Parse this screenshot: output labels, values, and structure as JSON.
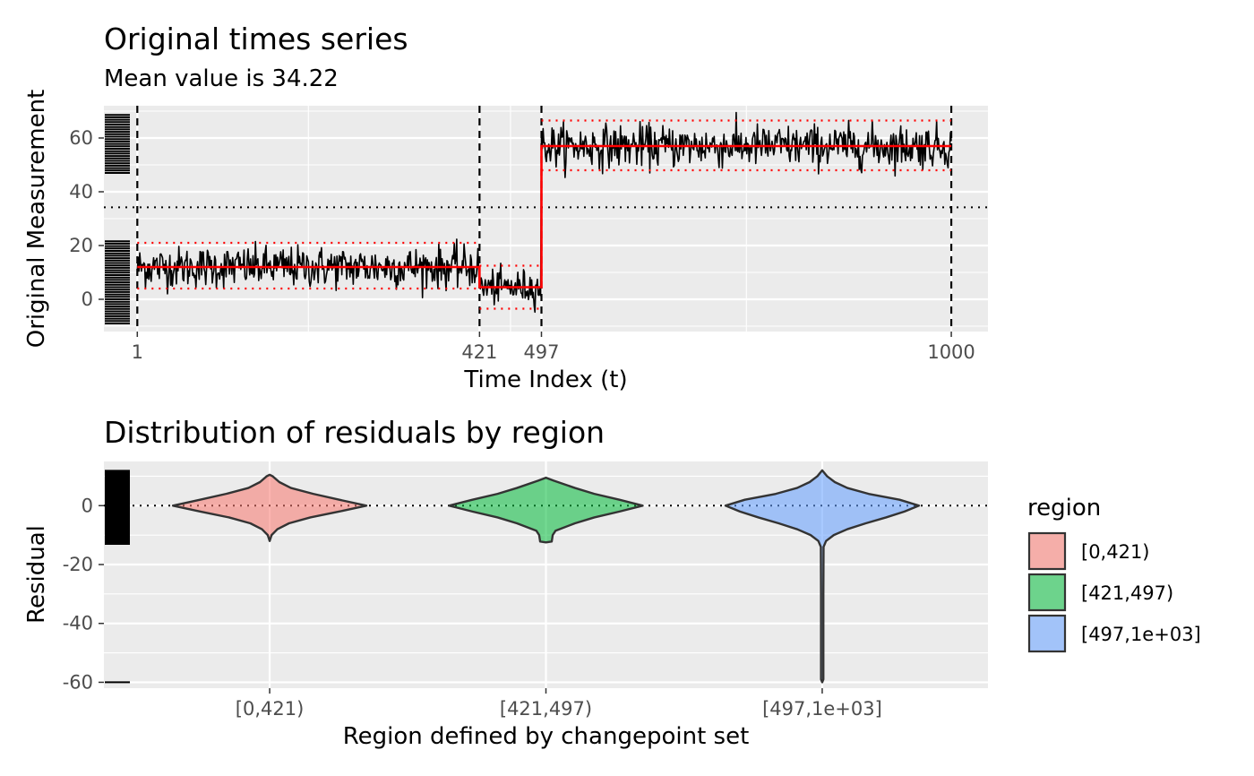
{
  "chart_data": [
    {
      "type": "line",
      "title": "Original times series",
      "subtitle": "Mean value is 34.22",
      "xlabel": "Time Index (t)",
      "ylabel": "Original Measurement",
      "xlim": [
        -40,
        1045
      ],
      "ylim": [
        -12,
        72
      ],
      "x_ticks": [
        1,
        421,
        497,
        1000
      ],
      "y_ticks": [
        0,
        20,
        40,
        60
      ],
      "grid": true,
      "overall_mean": 34.22,
      "changepoints": [
        1,
        421,
        497,
        1000
      ],
      "segments": [
        {
          "start": 1,
          "end": 421,
          "mean": 12,
          "lower": 4,
          "upper": 21,
          "noise_sd": 3.8
        },
        {
          "start": 421,
          "end": 497,
          "mean": 4.5,
          "lower": -3.5,
          "upper": 12.5,
          "noise_sd": 3.2
        },
        {
          "start": 497,
          "end": 1000,
          "mean": 57,
          "lower": 48,
          "upper": 66.5,
          "noise_sd": 3.9
        }
      ],
      "rug_min": -9,
      "rug_low_max": 22,
      "rug_high_min": 47,
      "rug_high_max": 69
    },
    {
      "type": "violin",
      "title": "Distribution of residuals by region",
      "xlabel": "Region defined by changepoint set",
      "ylabel": "Residual",
      "categories": [
        "[0,421)",
        "[421,497)",
        "[497,1e+03]"
      ],
      "ylim": [
        -62,
        15
      ],
      "y_ticks": [
        0,
        -20,
        -40,
        -60
      ],
      "grid": true,
      "reference_line": 0,
      "legend": {
        "title": "region",
        "position": "right",
        "items": [
          {
            "label": "[0,421)",
            "color": "#F8766D"
          },
          {
            "label": "[421,497)",
            "color": "#00BA38"
          },
          {
            "label": "[497,1e+03]",
            "color": "#619CFF"
          }
        ]
      },
      "series": [
        {
          "name": "[0,421)",
          "color": "#F8766D",
          "max": 10.5,
          "min": -12,
          "profile": [
            [
              -12,
              0.0
            ],
            [
              -10,
              0.02
            ],
            [
              -8,
              0.08
            ],
            [
              -6,
              0.2
            ],
            [
              -4,
              0.42
            ],
            [
              -2,
              0.72
            ],
            [
              0,
              1.0
            ],
            [
              2,
              0.72
            ],
            [
              4,
              0.45
            ],
            [
              6,
              0.22
            ],
            [
              8,
              0.1
            ],
            [
              10,
              0.03
            ],
            [
              10.5,
              0.0
            ]
          ]
        },
        {
          "name": "[421,497)",
          "color": "#00BA38",
          "max": 9.5,
          "min": -12.5,
          "profile": [
            [
              -12.5,
              0.0
            ],
            [
              -12.2,
              0.06
            ],
            [
              -10,
              0.07
            ],
            [
              -8.5,
              0.1
            ],
            [
              -6,
              0.3
            ],
            [
              -4,
              0.5
            ],
            [
              -2,
              0.76
            ],
            [
              0,
              1.0
            ],
            [
              2,
              0.76
            ],
            [
              4,
              0.5
            ],
            [
              6,
              0.3
            ],
            [
              8.5,
              0.08
            ],
            [
              9.5,
              0.0
            ]
          ]
        },
        {
          "name": "[497,1e+03]",
          "color": "#619CFF",
          "max": 12,
          "min": -60,
          "profile": [
            [
              -60,
              0.0
            ],
            [
              -59,
              0.012
            ],
            [
              -30,
              0.012
            ],
            [
              -14,
              0.014
            ],
            [
              -12,
              0.04
            ],
            [
              -10,
              0.12
            ],
            [
              -8,
              0.26
            ],
            [
              -6,
              0.45
            ],
            [
              -4,
              0.66
            ],
            [
              -2,
              0.85
            ],
            [
              0,
              1.0
            ],
            [
              2,
              0.8
            ],
            [
              4,
              0.48
            ],
            [
              6,
              0.26
            ],
            [
              8,
              0.13
            ],
            [
              10,
              0.05
            ],
            [
              12,
              0.0
            ]
          ]
        }
      ],
      "rug_min": -13,
      "rug_max": 12,
      "rug_outlier": -60
    }
  ]
}
